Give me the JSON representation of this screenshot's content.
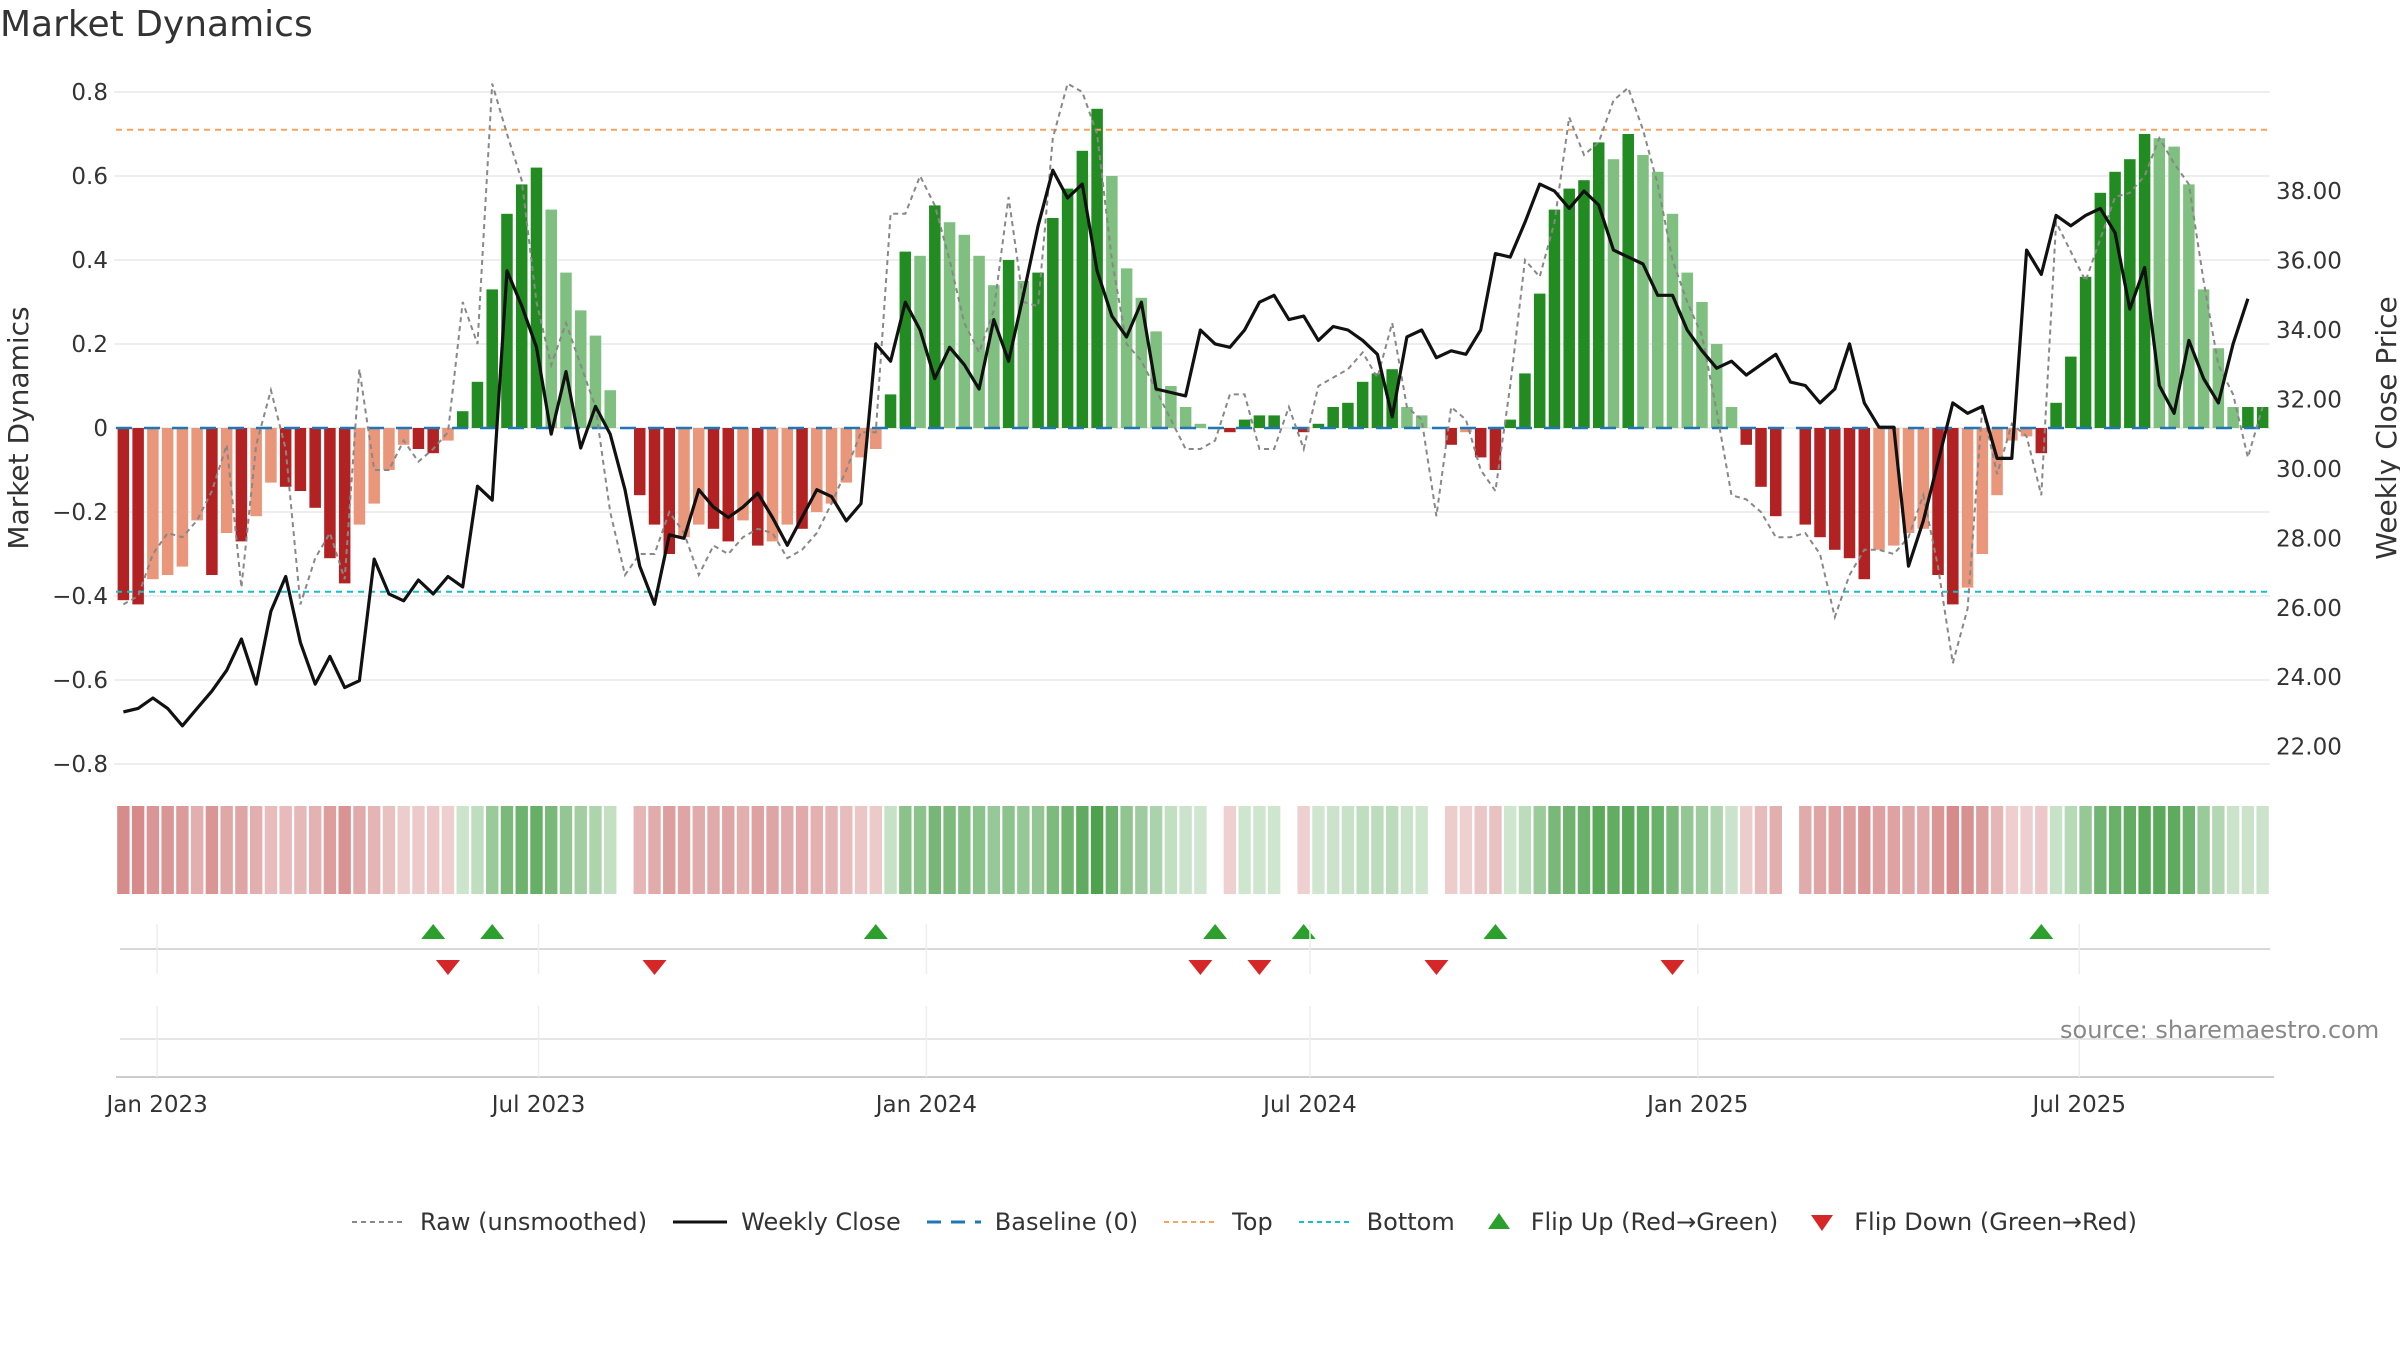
{
  "title": "Market Dynamics",
  "source": "source: sharemaestro.com",
  "colors": {
    "green_strong": "#228b22",
    "green_light": "#7fbf7f",
    "red_strong": "#b22222",
    "red_light": "#e9967a",
    "close_line": "#111111",
    "raw_line": "#888888",
    "baseline": "#1f77b4",
    "top": "#f4a460",
    "bottom": "#17becf",
    "flip_up": "#2ca02c",
    "flip_down": "#d62728"
  },
  "chart_data": {
    "type": "bar",
    "ylabel_left": "Market Dynamics",
    "ylabel_right": "Weekly Close Price",
    "ylim_left": [
      -0.8,
      0.8
    ],
    "ylim_right": [
      21.5,
      39.5
    ],
    "yticks_left": [
      "0.8",
      "0.6",
      "0.4",
      "0.2",
      "0",
      "−0.2",
      "−0.4",
      "−0.6",
      "−0.8"
    ],
    "yticks_right": [
      "38.00",
      "36.00",
      "34.00",
      "32.00",
      "30.00",
      "28.00",
      "26.00",
      "24.00",
      "22.00"
    ],
    "xticks": [
      "Jan 2023",
      "Jul 2023",
      "Jan 2024",
      "Jul 2024",
      "Jan 2025",
      "Jul 2025"
    ],
    "start_date": "2022-12-16",
    "top_level": 0.71,
    "bottom_level": -0.39,
    "baseline": 0,
    "grid": true,
    "legend_position": "bottom",
    "momentum": [
      -0.41,
      -0.42,
      -0.36,
      -0.35,
      -0.33,
      -0.22,
      -0.35,
      -0.25,
      -0.27,
      -0.21,
      -0.13,
      -0.14,
      -0.15,
      -0.19,
      -0.31,
      -0.37,
      -0.23,
      -0.18,
      -0.1,
      -0.04,
      -0.05,
      -0.06,
      -0.03,
      0.04,
      0.11,
      0.33,
      0.51,
      0.58,
      0.62,
      0.52,
      0.37,
      0.28,
      0.22,
      0.09,
      0.0,
      -0.16,
      -0.23,
      -0.3,
      -0.26,
      -0.23,
      -0.24,
      -0.27,
      -0.22,
      -0.28,
      -0.27,
      -0.23,
      -0.24,
      -0.2,
      -0.18,
      -0.13,
      -0.07,
      -0.05,
      0.08,
      0.42,
      0.41,
      0.53,
      0.49,
      0.46,
      0.41,
      0.34,
      0.4,
      0.35,
      0.37,
      0.5,
      0.57,
      0.66,
      0.76,
      0.6,
      0.38,
      0.31,
      0.23,
      0.1,
      0.05,
      0.01,
      0.0,
      -0.01,
      0.02,
      0.03,
      0.03,
      0.0,
      -0.01,
      0.01,
      0.05,
      0.06,
      0.11,
      0.13,
      0.14,
      0.05,
      0.03,
      0.0,
      -0.04,
      -0.01,
      -0.07,
      -0.1,
      0.02,
      0.13,
      0.32,
      0.52,
      0.57,
      0.59,
      0.68,
      0.64,
      0.7,
      0.65,
      0.61,
      0.51,
      0.37,
      0.3,
      0.2,
      0.05,
      -0.04,
      -0.14,
      -0.21,
      0.0,
      -0.23,
      -0.26,
      -0.29,
      -0.31,
      -0.36,
      -0.29,
      -0.28,
      -0.25,
      -0.24,
      -0.35,
      -0.42,
      -0.38,
      -0.3,
      -0.16,
      -0.03,
      -0.02,
      -0.06,
      0.06,
      0.17,
      0.36,
      0.56,
      0.61,
      0.64,
      0.7,
      0.69,
      0.67,
      0.58,
      0.33,
      0.19,
      0.05,
      0.05,
      0.05
    ],
    "raw": [
      -0.42,
      -0.4,
      -0.3,
      -0.25,
      -0.26,
      -0.22,
      -0.15,
      -0.04,
      -0.38,
      -0.04,
      0.09,
      -0.05,
      -0.42,
      -0.31,
      -0.25,
      -0.36,
      0.14,
      -0.1,
      -0.1,
      -0.03,
      -0.08,
      -0.05,
      -0.01,
      0.3,
      0.2,
      0.82,
      0.7,
      0.59,
      0.3,
      0.15,
      0.25,
      0.15,
      0.05,
      -0.2,
      -0.35,
      -0.3,
      -0.3,
      -0.2,
      -0.25,
      -0.35,
      -0.28,
      -0.3,
      -0.26,
      -0.24,
      -0.25,
      -0.31,
      -0.29,
      -0.25,
      -0.18,
      -0.1,
      -0.01,
      -0.01,
      0.51,
      0.51,
      0.6,
      0.53,
      0.4,
      0.25,
      0.18,
      0.28,
      0.55,
      0.3,
      0.29,
      0.69,
      0.82,
      0.8,
      0.7,
      0.4,
      0.2,
      0.16,
      0.09,
      0.02,
      -0.05,
      -0.05,
      -0.03,
      0.08,
      0.08,
      -0.05,
      -0.05,
      0.05,
      -0.05,
      0.1,
      0.12,
      0.14,
      0.18,
      0.12,
      0.25,
      0.05,
      0.02,
      -0.21,
      0.05,
      0.02,
      -0.1,
      -0.15,
      0.1,
      0.4,
      0.36,
      0.49,
      0.74,
      0.65,
      0.68,
      0.78,
      0.81,
      0.71,
      0.58,
      0.4,
      0.3,
      0.22,
      0.04,
      -0.16,
      -0.17,
      -0.2,
      -0.26,
      -0.26,
      -0.25,
      -0.3,
      -0.45,
      -0.35,
      -0.29,
      -0.29,
      -0.3,
      -0.26,
      -0.16,
      -0.33,
      -0.56,
      -0.43,
      0.05,
      -0.11,
      0.01,
      -0.02,
      -0.16,
      0.49,
      0.42,
      0.35,
      0.45,
      0.55,
      0.56,
      0.6,
      0.69,
      0.63,
      0.58,
      0.35,
      0.15,
      0.08,
      -0.07,
      0.05
    ],
    "weekly_close": [
      23.0,
      23.1,
      23.4,
      23.1,
      22.6,
      23.1,
      23.6,
      24.2,
      25.1,
      23.8,
      25.9,
      26.9,
      25.0,
      23.8,
      24.6,
      23.7,
      23.9,
      27.4,
      26.4,
      26.2,
      26.8,
      26.4,
      26.9,
      26.6,
      29.5,
      29.1,
      35.7,
      34.7,
      33.5,
      31.0,
      32.8,
      30.6,
      31.8,
      31.0,
      29.4,
      27.2,
      26.1,
      28.1,
      28.0,
      29.4,
      28.9,
      28.6,
      28.9,
      29.3,
      28.6,
      27.8,
      28.6,
      29.4,
      29.2,
      28.5,
      29.0,
      33.6,
      33.1,
      34.8,
      34.0,
      32.6,
      33.5,
      33.0,
      32.3,
      34.3,
      33.1,
      35.0,
      37.0,
      38.6,
      37.8,
      38.2,
      35.7,
      34.4,
      33.8,
      34.8,
      32.3,
      32.2,
      32.1,
      34.0,
      33.6,
      33.5,
      34.0,
      34.8,
      35.0,
      34.3,
      34.4,
      33.7,
      34.1,
      34.0,
      33.7,
      33.3,
      31.5,
      33.8,
      34.0,
      33.2,
      33.4,
      33.3,
      34.0,
      36.2,
      36.1,
      37.1,
      38.2,
      38.0,
      37.5,
      38.0,
      37.6,
      36.3,
      36.1,
      35.9,
      35.0,
      35.0,
      34.0,
      33.4,
      32.9,
      33.1,
      32.7,
      33.0,
      33.3,
      32.5,
      32.4,
      31.9,
      32.3,
      33.6,
      31.9,
      31.2,
      31.2,
      27.2,
      28.5,
      30.2,
      31.9,
      31.6,
      31.8,
      30.3,
      30.3,
      36.3,
      35.6,
      37.3,
      37.0,
      37.3,
      37.5,
      36.8,
      34.6,
      35.8,
      32.4,
      31.6,
      33.7,
      32.6,
      31.9,
      33.6,
      34.9
    ]
  },
  "legend": {
    "raw": "Raw (unsmoothed)",
    "close": "Weekly Close",
    "baseline": "Baseline (0)",
    "top": "Top",
    "bottom": "Bottom",
    "flip_up": "Flip Up (Red→Green)",
    "flip_down": "Flip Down (Green→Red)"
  },
  "flip_up_dates": [
    "2023-05-12",
    "2023-06-09",
    "2023-12-08",
    "2024-05-17",
    "2024-06-28",
    "2024-09-27",
    "2025-06-13"
  ],
  "flip_down_dates": [
    "2023-05-19",
    "2023-08-25",
    "2024-05-10",
    "2024-06-07",
    "2024-08-30",
    "2024-12-20"
  ]
}
